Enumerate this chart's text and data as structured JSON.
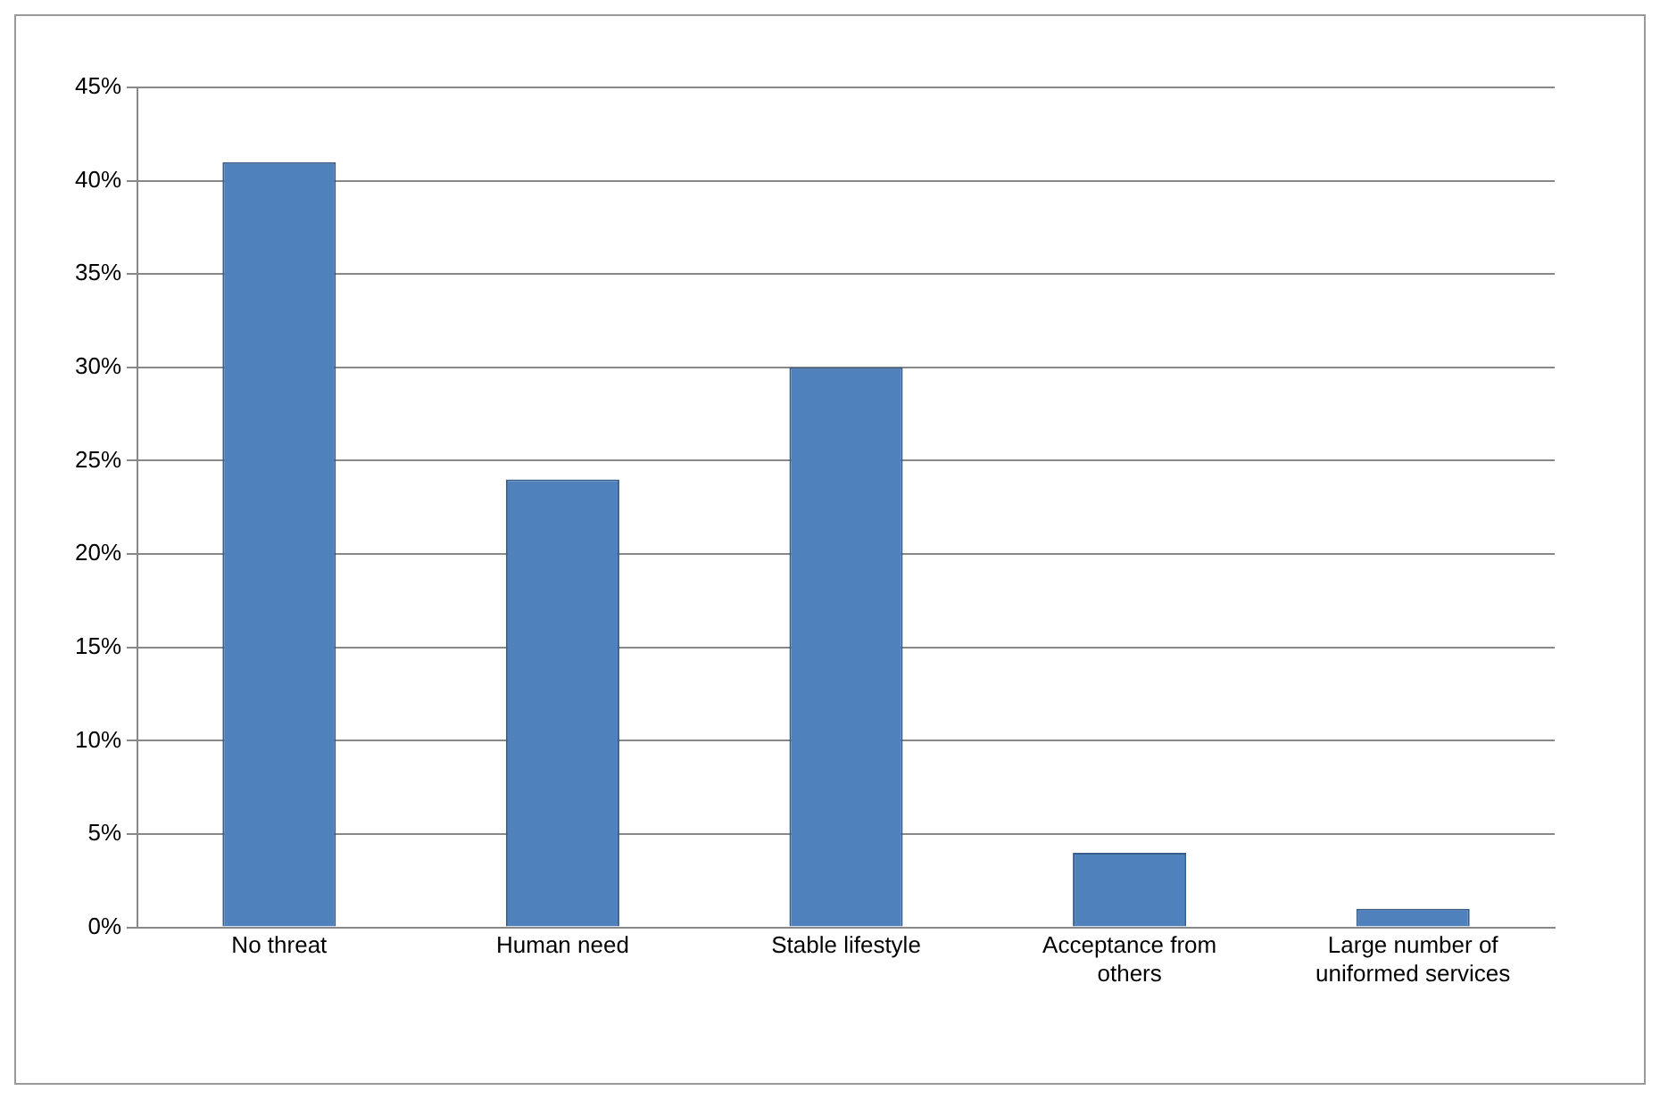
{
  "chart_data": {
    "type": "bar",
    "categories": [
      "No threat",
      "Human need",
      "Stable lifestyle",
      "Acceptance from others",
      "Large number of uniformed services"
    ],
    "values": [
      41,
      24,
      30,
      4,
      1
    ],
    "color": "#4f81bd",
    "ylim": [
      0,
      45
    ],
    "yticks": [
      {
        "value": 0,
        "label": "0%"
      },
      {
        "value": 5,
        "label": "5%"
      },
      {
        "value": 10,
        "label": "10%"
      },
      {
        "value": 15,
        "label": "15%"
      },
      {
        "value": 20,
        "label": "20%"
      },
      {
        "value": 25,
        "label": "25%"
      },
      {
        "value": 30,
        "label": "30%"
      },
      {
        "value": 35,
        "label": "35%"
      },
      {
        "value": 40,
        "label": "40%"
      },
      {
        "value": 45,
        "label": "45%"
      }
    ],
    "grid": "y",
    "legend": false
  }
}
